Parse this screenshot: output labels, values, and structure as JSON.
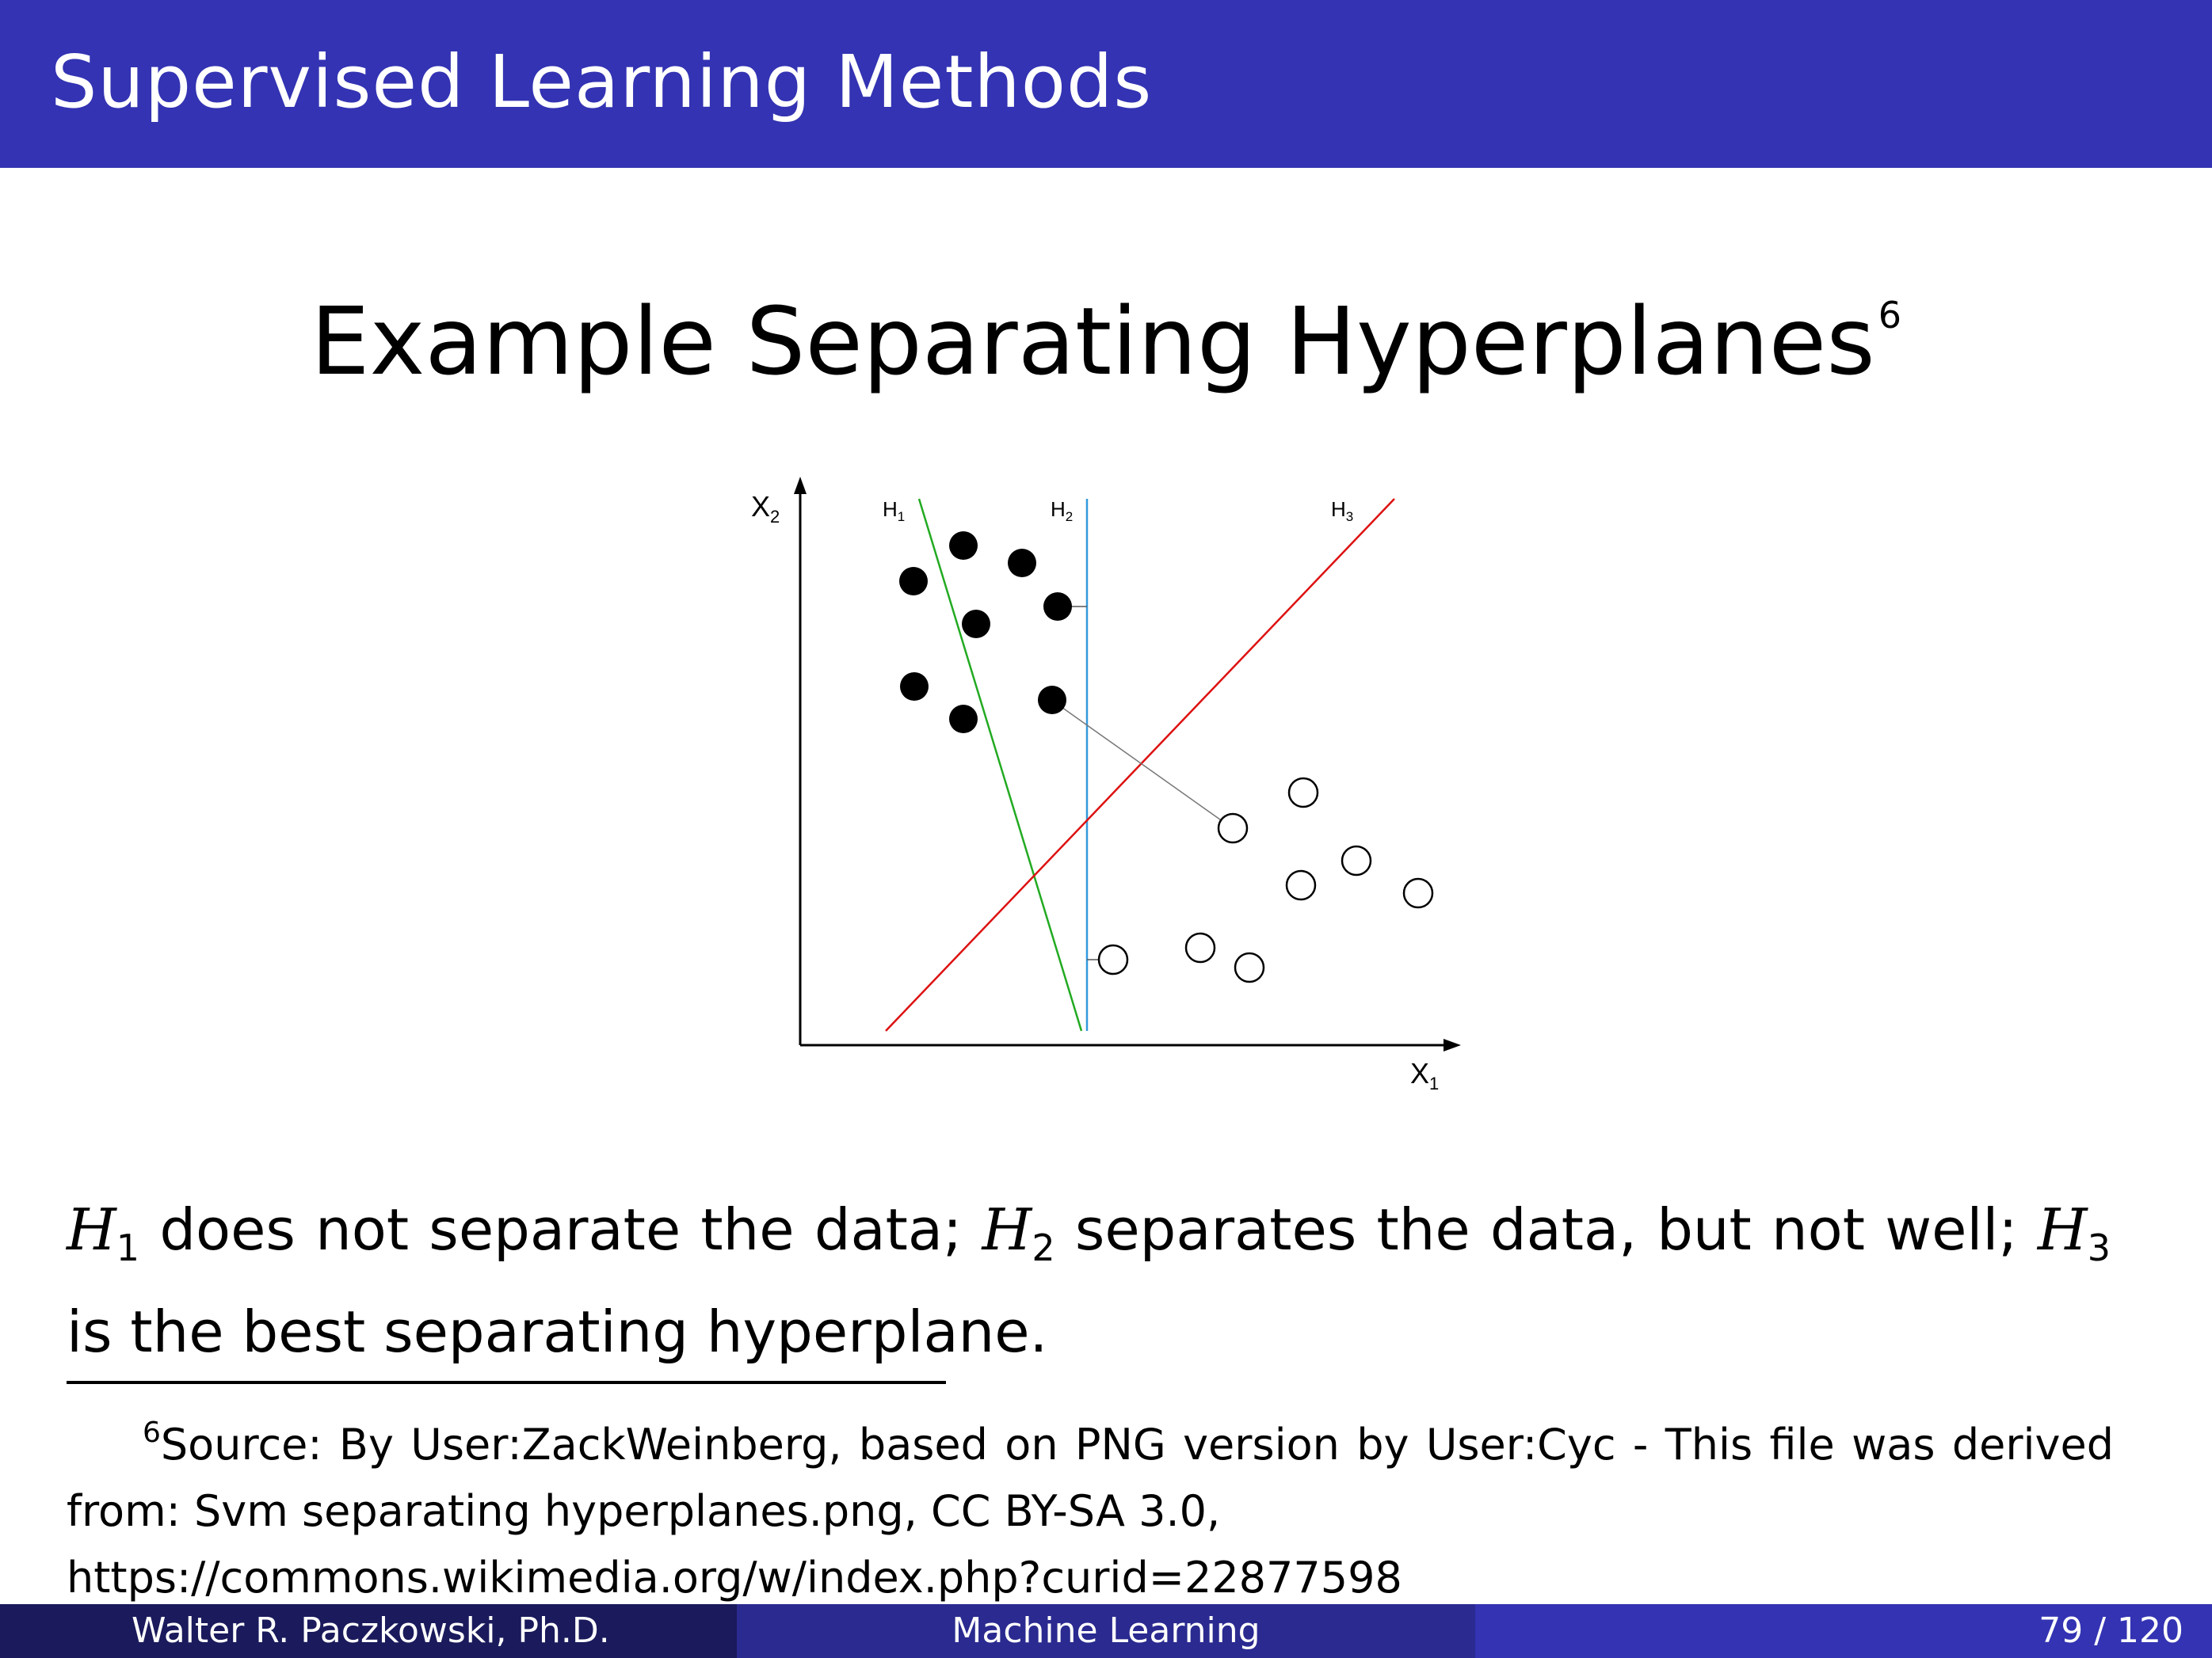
{
  "header": {
    "title": "Supervised Learning Methods"
  },
  "slide": {
    "title": "Example Separating Hyperplanes",
    "title_footnote_mark": "6"
  },
  "figure": {
    "x_axis_label": "X",
    "x_axis_sub": "1",
    "y_axis_label": "X",
    "y_axis_sub": "2",
    "lines": [
      {
        "name": "H",
        "sub": "1",
        "color": "#22aa22"
      },
      {
        "name": "H",
        "sub": "2",
        "color": "#3399dd"
      },
      {
        "name": "H",
        "sub": "3",
        "color": "#dd1111"
      }
    ],
    "classes": [
      "filled",
      "hollow"
    ]
  },
  "caption": {
    "h1": "H",
    "h1_sub": "1",
    "part1": " does not separate the data; ",
    "h2": "H",
    "h2_sub": "2",
    "part2": " separates the data, but not well; ",
    "h3": "H",
    "h3_sub": "3",
    "part3": " is the best separating hyperplane."
  },
  "footnote": {
    "mark": "6",
    "line1": "Source: By User:ZackWeinberg, based on PNG version by User:Cyc - This file was derived",
    "line2": "from: Svm separating hyperplanes.png, CC BY-SA 3.0,",
    "line3": "https://commons.wikimedia.org/w/index.php?curid=22877598"
  },
  "footer": {
    "author": "Walter R. Paczkowski, Ph.D.",
    "course": "Machine Learning",
    "page": "79 / 120"
  }
}
